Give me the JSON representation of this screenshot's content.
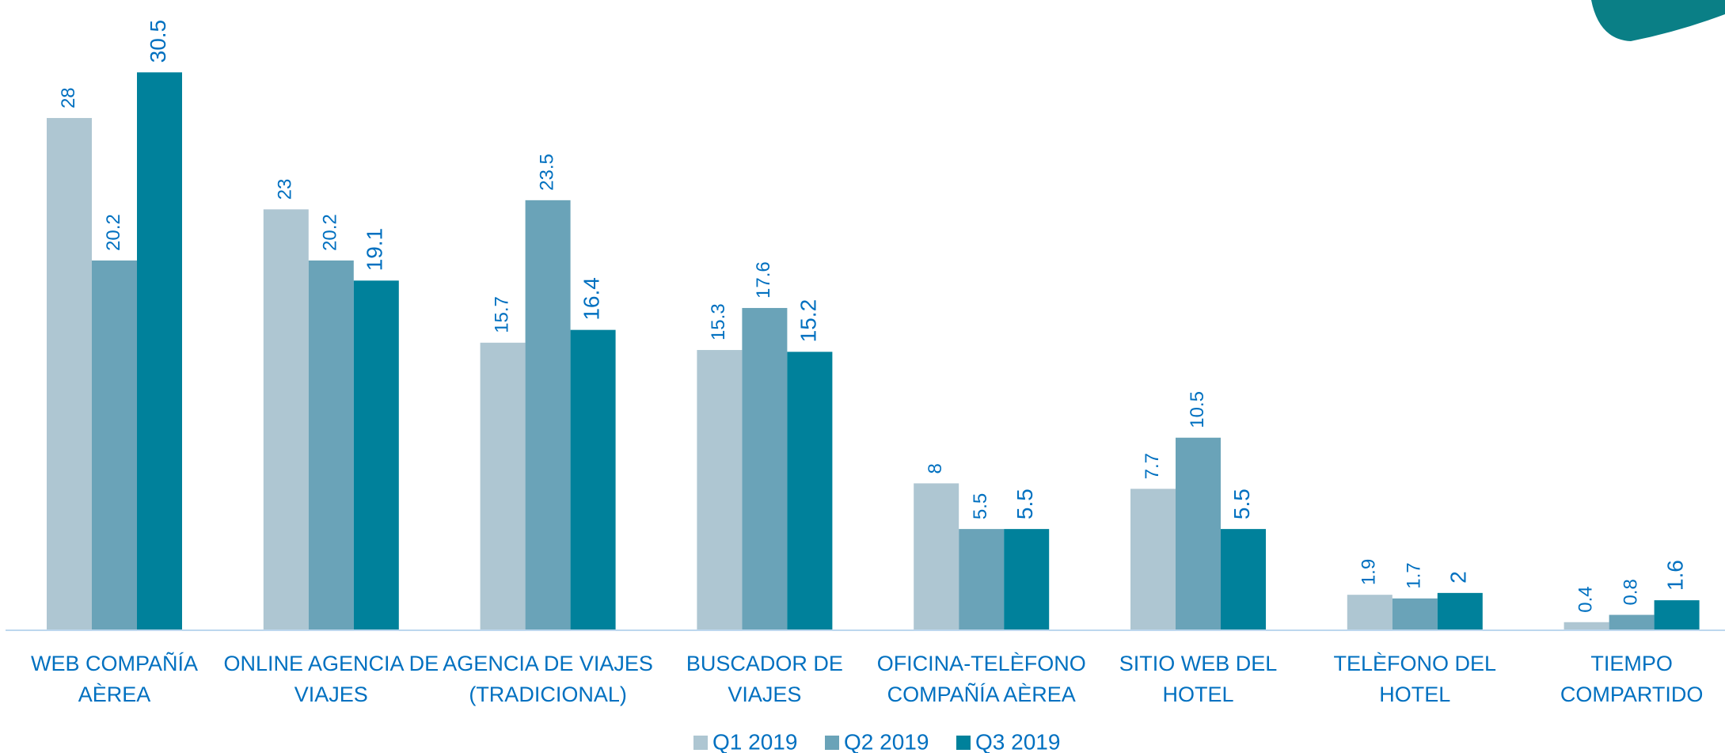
{
  "chart_data": {
    "type": "bar",
    "categories": [
      [
        "WEB COMPAÑÍA",
        "AÈREA"
      ],
      [
        "ONLINE AGENCIA DE",
        "VIAJES"
      ],
      [
        "AGENCIA DE VIAJES",
        "(TRADICIONAL)"
      ],
      [
        "BUSCADOR DE",
        "VIAJES"
      ],
      [
        "OFICINA-TELÈFONO",
        "COMPAÑÍA AÈREA"
      ],
      [
        "SITIO WEB DEL",
        "HOTEL"
      ],
      [
        "TELÈFONO DEL",
        "HOTEL"
      ],
      [
        "TIEMPO",
        "COMPARTIDO"
      ]
    ],
    "series": [
      {
        "name": "Q1 2019",
        "color": "#aec6d2",
        "values": [
          28,
          23,
          15.7,
          15.3,
          8,
          7.7,
          1.9,
          0.4
        ]
      },
      {
        "name": "Q2 2019",
        "color": "#6aa3b8",
        "values": [
          20.2,
          20.2,
          23.5,
          17.6,
          5.5,
          10.5,
          1.7,
          0.8
        ]
      },
      {
        "name": "Q3 2019",
        "color": "#00819b",
        "values": [
          30.5,
          19.1,
          16.4,
          15.2,
          5.5,
          5.5,
          2,
          1.6
        ]
      }
    ],
    "legend": "bottom"
  }
}
